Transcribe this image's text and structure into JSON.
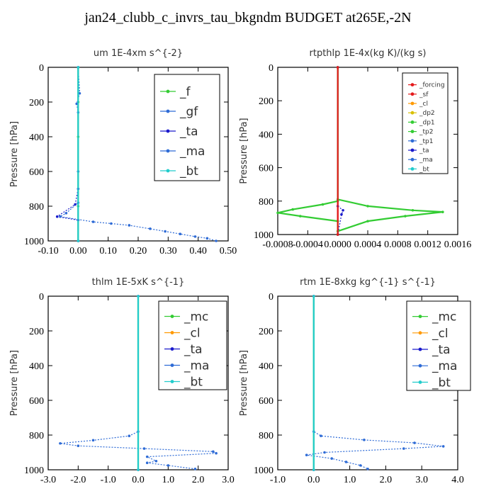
{
  "figure_title": "jan24_clubb_c_invrs_tau_bkgndm  BUDGET at265E,-2N",
  "colors": {
    "red": "#e41a1c",
    "orange": "#ff9900",
    "yellow": "#d9c000",
    "green": "#33cc33",
    "blue": "#2e6bd6",
    "navy": "#1a1acc",
    "cyan": "#22cccc",
    "black": "#000000"
  },
  "chart_data": [
    {
      "type": "line",
      "title": "um   1E-4xm s^{-2}",
      "ylabel": "Pressure [hPa]",
      "xlim": [
        -0.1,
        0.5
      ],
      "ylim": [
        1000,
        0
      ],
      "xticks": [
        "-0.10",
        "0.00",
        "0.10",
        "0.20",
        "0.30",
        "0.40",
        "0.50"
      ],
      "yticks": [
        "0",
        "200",
        "400",
        "600",
        "800",
        "1000"
      ],
      "legend": [
        "_f",
        "_gf",
        "_ta",
        "_ma",
        "_bt"
      ],
      "series": [
        {
          "name": "_f",
          "color": "green",
          "style": "solid",
          "points": [
            [
              0.0,
              0
            ],
            [
              0.0,
              200
            ],
            [
              0.0,
              400
            ],
            [
              0.0,
              600
            ],
            [
              0.0,
              800
            ],
            [
              0.0,
              1000
            ]
          ]
        },
        {
          "name": "_gf",
          "color": "blue",
          "style": "dotted",
          "points": [
            [
              0.0,
              0
            ],
            [
              0.005,
              150
            ],
            [
              -0.005,
              210
            ],
            [
              0.0,
              260
            ],
            [
              0.0,
              600
            ],
            [
              0.0,
              1000
            ]
          ]
        },
        {
          "name": "_ta",
          "color": "navy",
          "style": "dotted",
          "points": [
            [
              0.0,
              0
            ],
            [
              0.0,
              700
            ],
            [
              -0.01,
              790
            ],
            [
              -0.07,
              860
            ],
            [
              0.0,
              880
            ],
            [
              0.0,
              1000
            ]
          ]
        },
        {
          "name": "_ma",
          "color": "blue",
          "style": "dotted",
          "points": [
            [
              0.0,
              0
            ],
            [
              0.0,
              780
            ],
            [
              -0.04,
              840
            ],
            [
              -0.06,
              860
            ],
            [
              0.05,
              890
            ],
            [
              0.11,
              900
            ],
            [
              0.17,
              910
            ],
            [
              0.24,
              930
            ],
            [
              0.29,
              945
            ],
            [
              0.34,
              960
            ],
            [
              0.39,
              975
            ],
            [
              0.43,
              985
            ],
            [
              0.46,
              1000
            ]
          ]
        },
        {
          "name": "_bt",
          "color": "cyan",
          "style": "solid",
          "points": [
            [
              0.0,
              0
            ],
            [
              0.0,
              1000
            ]
          ]
        }
      ]
    },
    {
      "type": "line",
      "title": "rtpthlp   1E-4x(kg K)/(kg s)",
      "ylabel": "Pressure [hPa]",
      "xlim": [
        -0.0008,
        0.0016
      ],
      "ylim": [
        1000,
        0
      ],
      "xticks": [
        "-0.0008",
        "-0.0004",
        "0.0000",
        "0.0004",
        "0.0008",
        "0.0012",
        "0.0016"
      ],
      "yticks": [
        "0",
        "200",
        "400",
        "600",
        "800",
        "1000"
      ],
      "legend": [
        "_forcing",
        "_sf",
        "_cl",
        "_dp2",
        "_dp1",
        "_tp2",
        "_tp1",
        "_ta",
        "_ma",
        "_bt"
      ],
      "series": [
        {
          "name": "_forcing",
          "color": "red",
          "style": "solid",
          "points": [
            [
              0.0,
              0
            ],
            [
              0.0,
              1000
            ]
          ]
        },
        {
          "name": "_dp1",
          "color": "green",
          "style": "solid",
          "points": [
            [
              0.0,
              0
            ],
            [
              0.0,
              800
            ],
            [
              -0.0002,
              820
            ],
            [
              -0.0006,
              850
            ],
            [
              -0.0008,
              870
            ],
            [
              -0.0005,
              890
            ],
            [
              0.0,
              920
            ],
            [
              0.0,
              1000
            ]
          ]
        },
        {
          "name": "_tp2",
          "color": "green",
          "style": "solid",
          "points": [
            [
              0.0,
              0
            ],
            [
              0.0,
              790
            ],
            [
              0.0004,
              830
            ],
            [
              0.001,
              855
            ],
            [
              0.0014,
              865
            ],
            [
              0.0009,
              890
            ],
            [
              0.0004,
              920
            ],
            [
              0.0,
              980
            ],
            [
              0.0,
              1000
            ]
          ]
        },
        {
          "name": "_ta",
          "color": "navy",
          "style": "dotted",
          "points": [
            [
              0.0,
              0
            ],
            [
              0.0,
              830
            ],
            [
              7e-05,
              855
            ],
            [
              5e-05,
              880
            ],
            [
              0.0,
              1000
            ]
          ]
        },
        {
          "name": "_bt",
          "color": "red",
          "style": "solid",
          "points": [
            [
              0.0,
              0
            ],
            [
              0.0,
              1000
            ]
          ]
        }
      ]
    },
    {
      "type": "line",
      "title": "thlm   1E-5xK s^{-1}",
      "ylabel": "Pressure [hPa]",
      "xlim": [
        -3.0,
        3.0
      ],
      "ylim": [
        1000,
        0
      ],
      "xticks": [
        "-3.0",
        "-2.0",
        "-1.0",
        "0.0",
        "1.0",
        "2.0",
        "3.0"
      ],
      "yticks": [
        "0",
        "200",
        "400",
        "600",
        "800",
        "1000"
      ],
      "legend": [
        "_mc",
        "_cl",
        "_ta",
        "_ma",
        "_bt"
      ],
      "series": [
        {
          "name": "_mc",
          "color": "green",
          "style": "solid",
          "points": [
            [
              0.0,
              0
            ],
            [
              0.0,
              1000
            ]
          ]
        },
        {
          "name": "_cl",
          "color": "blue",
          "style": "dotted",
          "points": [
            [
              0.0,
              0
            ],
            [
              0.0,
              780
            ],
            [
              -0.3,
              805
            ],
            [
              -1.5,
              830
            ],
            [
              -2.6,
              848
            ],
            [
              -2.0,
              862
            ],
            [
              0.2,
              878
            ],
            [
              2.5,
              895
            ],
            [
              2.6,
              905
            ],
            [
              0.3,
              925
            ],
            [
              0.6,
              950
            ],
            [
              0.3,
              960
            ],
            [
              1.0,
              975
            ],
            [
              1.9,
              995
            ]
          ]
        },
        {
          "name": "_ta",
          "color": "navy",
          "style": "dotted",
          "points": [
            [
              0.0,
              0
            ],
            [
              0.0,
              1000
            ]
          ]
        },
        {
          "name": "_ma",
          "color": "blue",
          "style": "dotted",
          "points": [
            [
              0.0,
              0
            ],
            [
              0.0,
              1000
            ]
          ]
        },
        {
          "name": "_bt",
          "color": "cyan",
          "style": "solid",
          "points": [
            [
              0.0,
              0
            ],
            [
              0.0,
              1000
            ]
          ]
        }
      ]
    },
    {
      "type": "line",
      "title": "rtm   1E-8xkg kg^{-1} s^{-1}",
      "ylabel": "Pressure [hPa]",
      "xlim": [
        -1.0,
        4.0
      ],
      "ylim": [
        1000,
        0
      ],
      "xticks": [
        "-1.0",
        "0.0",
        "1.0",
        "2.0",
        "3.0",
        "4.0"
      ],
      "yticks": [
        "0",
        "200",
        "400",
        "600",
        "800",
        "1000"
      ],
      "legend": [
        "_mc",
        "_cl",
        "_ta",
        "_ma",
        "_bt"
      ],
      "series": [
        {
          "name": "_mc",
          "color": "green",
          "style": "solid",
          "points": [
            [
              0.0,
              0
            ],
            [
              0.0,
              1000
            ]
          ]
        },
        {
          "name": "_cl",
          "color": "blue",
          "style": "dotted",
          "points": [
            [
              0.0,
              0
            ],
            [
              0.0,
              780
            ],
            [
              0.2,
              805
            ],
            [
              1.4,
              828
            ],
            [
              2.8,
              845
            ],
            [
              3.6,
              865
            ],
            [
              2.5,
              878
            ],
            [
              0.3,
              900
            ],
            [
              -0.2,
              915
            ],
            [
              0.5,
              935
            ],
            [
              0.9,
              955
            ],
            [
              1.3,
              975
            ],
            [
              1.5,
              995
            ]
          ]
        },
        {
          "name": "_ta",
          "color": "navy",
          "style": "dotted",
          "points": [
            [
              0.0,
              0
            ],
            [
              0.0,
              1000
            ]
          ]
        },
        {
          "name": "_ma",
          "color": "blue",
          "style": "dotted",
          "points": [
            [
              0.0,
              0
            ],
            [
              0.0,
              1000
            ]
          ]
        },
        {
          "name": "_bt",
          "color": "cyan",
          "style": "solid",
          "points": [
            [
              0.0,
              0
            ],
            [
              0.0,
              1000
            ]
          ]
        }
      ]
    }
  ]
}
